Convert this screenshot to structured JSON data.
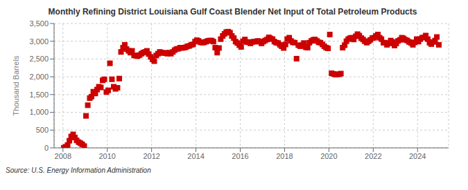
{
  "chart_data": {
    "type": "scatter",
    "title": "Monthly Refining District Louisiana Gulf Coast Blender Net Input of Total Petroleum Products",
    "ylabel": "Thousand Barrels",
    "annotations": [
      "Source: U.S. Energy Information Administration"
    ],
    "color": "#cc0000",
    "marker": "square",
    "grid": true,
    "xlim": [
      2007.6,
      2025.4
    ],
    "xticks": [
      2008,
      2010,
      2012,
      2014,
      2016,
      2018,
      2020,
      2022,
      2024
    ],
    "ylim": [
      0,
      3500
    ],
    "yticks": [
      0,
      500,
      {
        "value": 1000,
        "label": "1,000"
      },
      {
        "value": 1500,
        "label": "1,500"
      },
      {
        "value": 2000,
        "label": "2,000"
      },
      {
        "value": 2500,
        "label": "2,500"
      },
      {
        "value": 3000,
        "label": "3,000"
      },
      {
        "value": 3500,
        "label": "3,500"
      }
    ],
    "x": [
      2008.04,
      2008.12,
      2008.21,
      2008.29,
      2008.37,
      2008.46,
      2008.54,
      2008.62,
      2008.71,
      2008.79,
      2008.87,
      2008.96,
      2009.04,
      2009.12,
      2009.21,
      2009.29,
      2009.37,
      2009.46,
      2009.54,
      2009.62,
      2009.71,
      2009.79,
      2009.87,
      2009.96,
      2010.04,
      2010.12,
      2010.21,
      2010.29,
      2010.37,
      2010.46,
      2010.54,
      2010.62,
      2010.71,
      2010.79,
      2010.87,
      2010.96,
      2011.04,
      2011.12,
      2011.21,
      2011.29,
      2011.37,
      2011.46,
      2011.54,
      2011.62,
      2011.71,
      2011.79,
      2011.87,
      2011.96,
      2012.04,
      2012.12,
      2012.21,
      2012.29,
      2012.37,
      2012.46,
      2012.54,
      2012.62,
      2012.71,
      2012.79,
      2012.87,
      2012.96,
      2013.04,
      2013.12,
      2013.21,
      2013.29,
      2013.37,
      2013.46,
      2013.54,
      2013.62,
      2013.71,
      2013.79,
      2013.87,
      2013.96,
      2014.04,
      2014.12,
      2014.21,
      2014.29,
      2014.37,
      2014.46,
      2014.54,
      2014.62,
      2014.71,
      2014.79,
      2014.87,
      2014.96,
      2015.04,
      2015.12,
      2015.21,
      2015.29,
      2015.37,
      2015.46,
      2015.54,
      2015.62,
      2015.71,
      2015.79,
      2015.87,
      2015.96,
      2016.04,
      2016.12,
      2016.21,
      2016.29,
      2016.37,
      2016.46,
      2016.54,
      2016.62,
      2016.71,
      2016.79,
      2016.87,
      2016.96,
      2017.04,
      2017.12,
      2017.21,
      2017.29,
      2017.37,
      2017.46,
      2017.54,
      2017.62,
      2017.71,
      2017.79,
      2017.87,
      2017.96,
      2018.04,
      2018.12,
      2018.21,
      2018.29,
      2018.37,
      2018.46,
      2018.54,
      2018.62,
      2018.71,
      2018.79,
      2018.87,
      2018.96,
      2019.04,
      2019.12,
      2019.21,
      2019.29,
      2019.37,
      2019.46,
      2019.54,
      2019.62,
      2019.71,
      2019.79,
      2019.87,
      2019.96,
      2020.04,
      2020.12,
      2020.21,
      2020.29,
      2020.37,
      2020.46,
      2020.54,
      2020.62,
      2020.71,
      2020.79,
      2020.87,
      2020.96,
      2021.04,
      2021.12,
      2021.21,
      2021.29,
      2021.37,
      2021.46,
      2021.54,
      2021.62,
      2021.71,
      2021.79,
      2021.87,
      2021.96,
      2022.04,
      2022.12,
      2022.21,
      2022.29,
      2022.37,
      2022.46,
      2022.54,
      2022.62,
      2022.71,
      2022.79,
      2022.87,
      2022.96,
      2023.04,
      2023.12,
      2023.21,
      2023.29,
      2023.37,
      2023.46,
      2023.54,
      2023.62,
      2023.71,
      2023.79,
      2023.87,
      2023.96,
      2024.04,
      2024.12,
      2024.21,
      2024.29,
      2024.37,
      2024.46,
      2024.54,
      2024.62,
      2024.71,
      2024.79,
      2024.87,
      2024.96
    ],
    "values": [
      3,
      30,
      80,
      200,
      320,
      380,
      290,
      210,
      160,
      130,
      100,
      50,
      900,
      1200,
      1400,
      1440,
      1580,
      1530,
      1640,
      1720,
      1700,
      1900,
      1930,
      1570,
      1620,
      2380,
      1930,
      1720,
      1660,
      1690,
      1950,
      2700,
      2820,
      2900,
      2780,
      2730,
      2680,
      2730,
      2600,
      2600,
      2580,
      2610,
      2650,
      2680,
      2700,
      2730,
      2640,
      2560,
      2490,
      2440,
      2600,
      2650,
      2700,
      2680,
      2670,
      2670,
      2650,
      2680,
      2650,
      2700,
      2750,
      2780,
      2790,
      2820,
      2810,
      2820,
      2830,
      2860,
      2870,
      2900,
      2910,
      2990,
      3030,
      3010,
      2970,
      2960,
      2970,
      2990,
      3010,
      3020,
      3020,
      2990,
      2820,
      2680,
      2810,
      3060,
      3150,
      3210,
      3260,
      3270,
      3240,
      3150,
      3090,
      2990,
      2950,
      2890,
      2840,
      3000,
      3050,
      2980,
      2970,
      2940,
      2980,
      2990,
      2990,
      3010,
      2990,
      2940,
      2990,
      3020,
      3050,
      3110,
      3080,
      3060,
      2990,
      2960,
      2950,
      2900,
      2860,
      2810,
      2910,
      3060,
      3100,
      3010,
      2970,
      2960,
      2510,
      2890,
      2860,
      2890,
      2950,
      2830,
      2820,
      2960,
      3010,
      3040,
      3050,
      3010,
      2970,
      2960,
      2910,
      2860,
      2820,
      2800,
      3190,
      2100,
      2080,
      2060,
      2070,
      2070,
      2090,
      2820,
      2890,
      3000,
      3060,
      3090,
      3100,
      3050,
      3140,
      3200,
      3160,
      3090,
      3050,
      3000,
      2960,
      3000,
      3040,
      3090,
      3100,
      3150,
      3190,
      3100,
      3060,
      2960,
      2960,
      2900,
      2940,
      3020,
      2980,
      2880,
      2940,
      3010,
      3040,
      3100,
      3080,
      3040,
      3020,
      2980,
      2950,
      2900,
      2970,
      3060,
      2990,
      3060,
      3100,
      3110,
      3160,
      3060,
      2960,
      2920,
      2980,
      3020,
      3120,
      2900
    ]
  }
}
